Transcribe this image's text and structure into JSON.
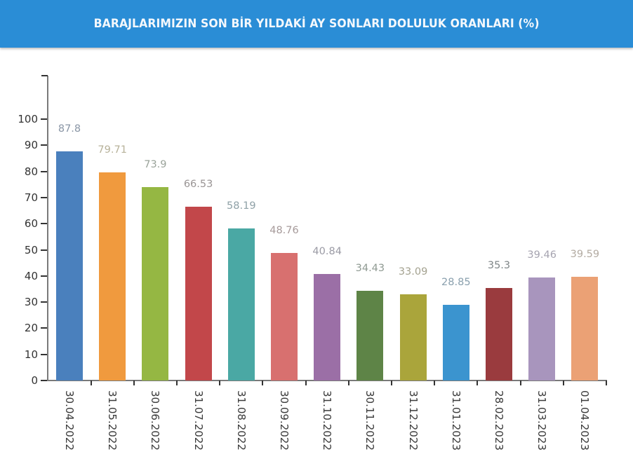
{
  "header": {
    "title": "BARAJLARIMIZIN SON BİR YILDAKİ AY SONLARI DOLULUK ORANLARI (%)",
    "background_color": "#2a8dd6"
  },
  "chart_data": {
    "type": "bar",
    "title": "BARAJLARIMIZIN SON BİR YILDAKİ AY SONLARI DOLULUK ORANLARI (%)",
    "xlabel": "",
    "ylabel": "",
    "ylim": [
      0,
      100
    ],
    "yticks": [
      "0",
      "10",
      "20",
      "30",
      "40",
      "50",
      "60",
      "70",
      "80",
      "90",
      "100"
    ],
    "grid": false,
    "legend": "none",
    "categories": [
      "30.04.2022",
      "31.05.2022",
      "30.06.2022",
      "31.07.2022",
      "31.08.2022",
      "30.09.2022",
      "31.10.2022",
      "30.11.2022",
      "31.12.2022",
      "31.01.2023",
      "28.02.2023",
      "31.03.2023",
      "01.04.2023"
    ],
    "values": [
      87.8,
      79.71,
      73.9,
      66.53,
      58.19,
      48.76,
      40.84,
      34.43,
      33.09,
      28.85,
      35.3,
      39.46,
      39.59
    ],
    "value_labels": [
      "87.8",
      "79.71",
      "73.9",
      "66.53",
      "58.19",
      "48.76",
      "40.84",
      "34.43",
      "33.09",
      "28.85",
      "35.3",
      "39.46",
      "39.59"
    ],
    "colors": [
      "#4a80bd",
      "#f09a3e",
      "#95b743",
      "#c2474a",
      "#4aa8a4",
      "#d8706f",
      "#9b6fa6",
      "#5e8447",
      "#aaa53b",
      "#3b94cf",
      "#9a3b3e",
      "#a895bd",
      "#eba175"
    ],
    "label_colors": [
      "#8a96a6",
      "#b7b29a",
      "#9aa39a",
      "#9a9595",
      "#8fa1a7",
      "#a69a9a",
      "#9a9aa4",
      "#8f9a92",
      "#a4a290",
      "#8aa0ae",
      "#7f8688",
      "#a6a4b0",
      "#b3aba2"
    ]
  }
}
